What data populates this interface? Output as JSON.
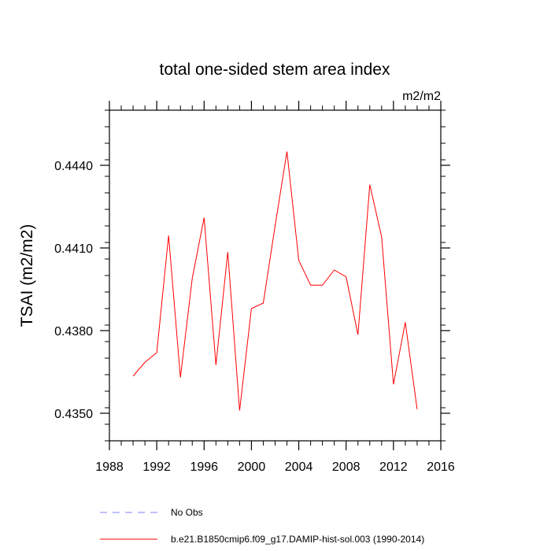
{
  "chart_data": {
    "type": "line",
    "title": "total one-sided stem area index",
    "units": "m2/m2",
    "ylabel": "TSAI  (m2/m2)",
    "xlabel": "",
    "xlim": [
      1988,
      2016
    ],
    "ylim": [
      0.434,
      0.446
    ],
    "xticks": [
      1988,
      1992,
      1996,
      2000,
      2004,
      2008,
      2012,
      2016
    ],
    "yticks": [
      0.435,
      0.438,
      0.441,
      0.444
    ],
    "ytick_labels": [
      "0.4350",
      "0.4380",
      "0.4410",
      "0.4440"
    ],
    "x_minor_step": 1,
    "y_minor_step": 0.0006,
    "grid": false,
    "legend_position": "bottom-left",
    "series": [
      {
        "name": "b.e21.B1850cmip6.f09_g17.DAMIP-hist-sol.003 (1990-2014)",
        "color": "#ff0000",
        "dash": "solid",
        "x": [
          1990,
          1991,
          1992,
          1993,
          1994,
          1995,
          1996,
          1997,
          1998,
          1999,
          2000,
          2001,
          2002,
          2003,
          2004,
          2005,
          2006,
          2007,
          2008,
          2009,
          2010,
          2011,
          2012,
          2013,
          2014
        ],
        "y": [
          0.43635,
          0.43685,
          0.4372,
          0.44145,
          0.4363,
          0.4399,
          0.4421,
          0.43675,
          0.44085,
          0.4351,
          0.4388,
          0.439,
          0.4418,
          0.4445,
          0.44055,
          0.43965,
          0.43965,
          0.4402,
          0.43995,
          0.43785,
          0.4433,
          0.4414,
          0.43605,
          0.4383,
          0.43515
        ]
      }
    ],
    "legend": [
      {
        "label": "No Obs",
        "color": "#8080ff",
        "dash": "dashed"
      },
      {
        "label": "b.e21.B1850cmip6.f09_g17.DAMIP-hist-sol.003 (1990-2014)",
        "color": "#ff0000",
        "dash": "solid"
      }
    ]
  }
}
